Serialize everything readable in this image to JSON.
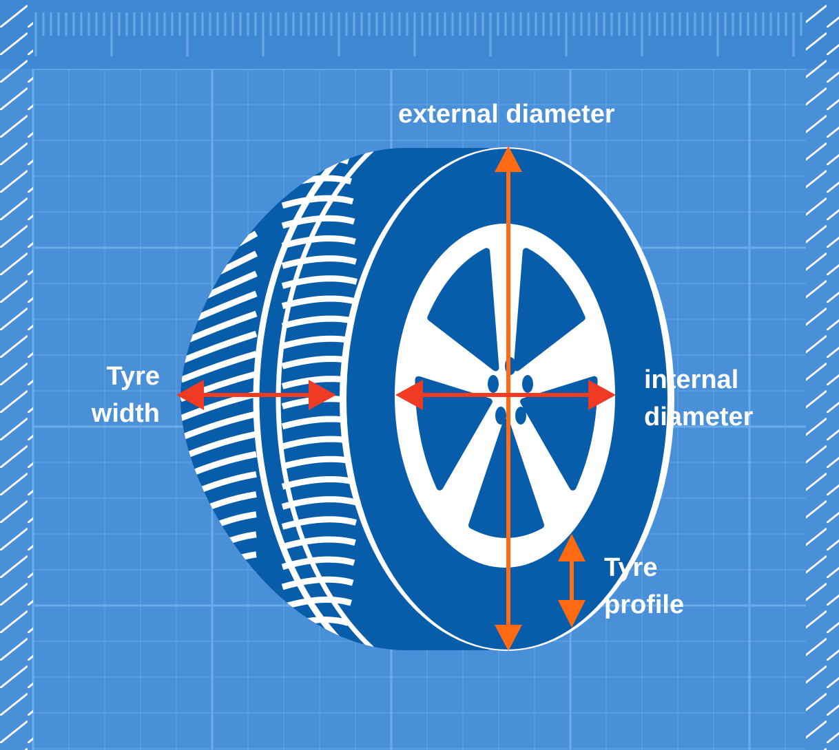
{
  "labels": {
    "external_diameter": "external diameter",
    "tyre_width_line1": "Tyre",
    "tyre_width_line2": "width",
    "internal_diameter_line1": "internal",
    "internal_diameter_line2": "diameter",
    "tyre_profile_line1": "Tyre",
    "tyre_profile_line2": "profile"
  },
  "colors": {
    "background": "#4a90d9",
    "grid_line": "#5c9fe2",
    "ruler": "#3f86d2",
    "tyre": "#075da9",
    "tread_and_rim": "#ffffff",
    "arrow_orange": "#ff6a13",
    "arrow_red": "#ef3b24"
  }
}
